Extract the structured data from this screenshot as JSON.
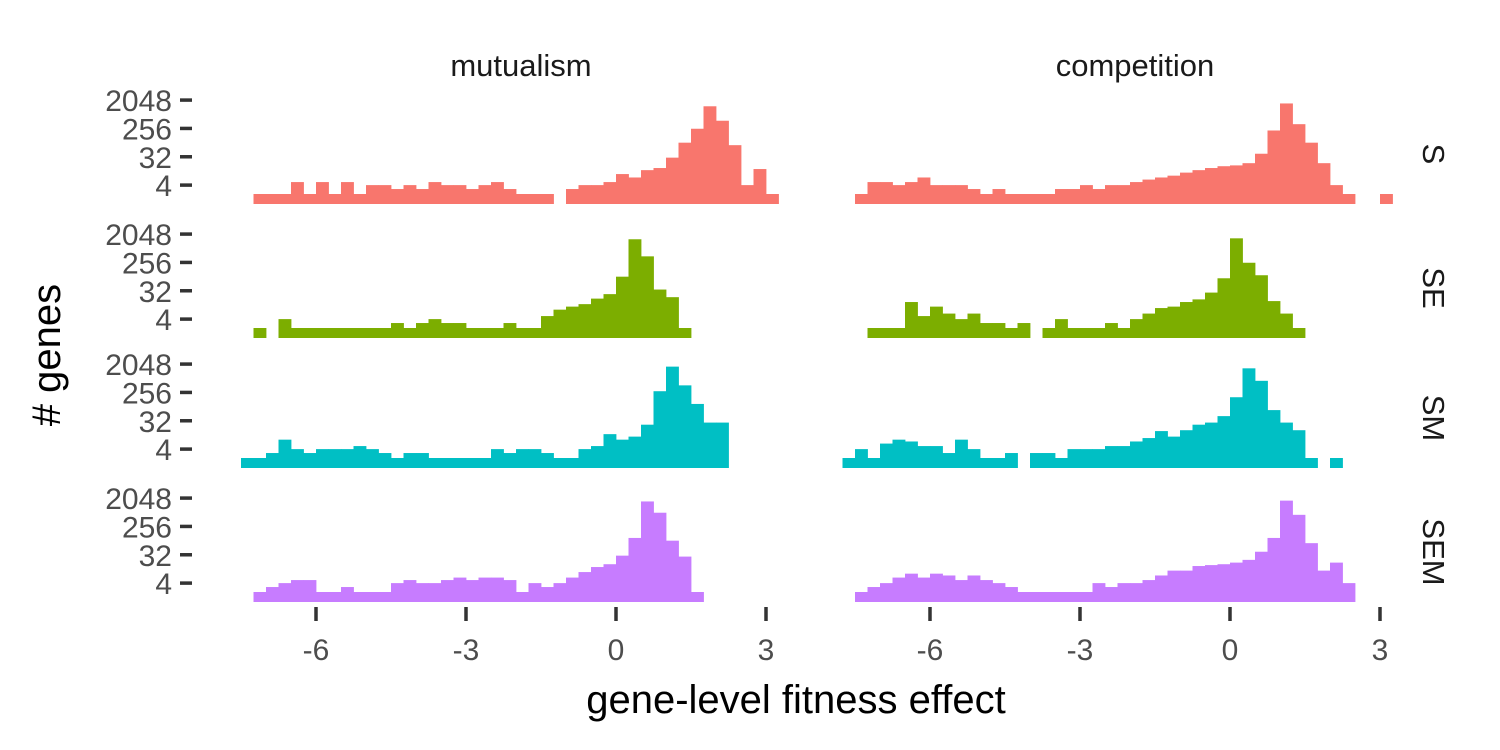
{
  "chart_data": {
    "type": "bar",
    "xlabel": "gene-level fitness effect",
    "ylabel": "# genes",
    "x_ticks": [
      -6,
      -3,
      0,
      3
    ],
    "xlim": [
      -7.6,
      3.0
    ],
    "y_scale": "log2",
    "y_ticks": [
      4,
      32,
      256,
      2048
    ],
    "y_tick_labels": [
      "4",
      "32",
      "256",
      "2048"
    ],
    "bin_width": 0.25,
    "grid": false,
    "columns": [
      "mutualism",
      "competition"
    ],
    "rows": [
      "S",
      "SE",
      "SM",
      "SEM"
    ],
    "colors": {
      "S": "#F8766D",
      "SE": "#7CAE00",
      "SM": "#00BFC4",
      "SEM": "#C77CFF"
    },
    "panels": [
      {
        "row": "S",
        "column": "mutualism",
        "bin_start": -7.25,
        "counts": [
          1,
          2,
          2,
          5,
          2,
          5,
          1,
          5,
          1,
          4,
          4,
          3,
          4,
          3,
          5,
          4,
          4,
          3,
          4,
          5,
          3,
          2,
          2,
          1,
          null,
          3,
          4,
          4,
          5,
          9,
          7,
          12,
          14,
          30,
          90,
          250,
          1300,
          450,
          75,
          4,
          13,
          2
        ]
      },
      {
        "row": "S",
        "column": "competition",
        "bin_start": -7.5,
        "counts": [
          1,
          5,
          5,
          4,
          5,
          7,
          4,
          4,
          4,
          3,
          2,
          3,
          1,
          1,
          2,
          2,
          3,
          3,
          4,
          3,
          4,
          4,
          5,
          6,
          7,
          8,
          10,
          12,
          14,
          16,
          17,
          20,
          40,
          220,
          1600,
          350,
          90,
          20,
          4,
          2,
          null,
          null,
          1
        ]
      },
      {
        "row": "SE",
        "column": "mutualism",
        "bin_start": -7.25,
        "counts": [
          2,
          null,
          4,
          1,
          2,
          1,
          1,
          1,
          2,
          2,
          2,
          3,
          2,
          3,
          4,
          3,
          3,
          2,
          2,
          2,
          3,
          2,
          1,
          5,
          8,
          10,
          12,
          18,
          25,
          90,
          1400,
          400,
          35,
          20,
          2
        ]
      },
      {
        "row": "SE",
        "column": "competition",
        "bin_start": -7.25,
        "counts": [
          2,
          2,
          2,
          14,
          5,
          10,
          6,
          4,
          6,
          3,
          3,
          1,
          3,
          null,
          1,
          4,
          1,
          2,
          2,
          3,
          1,
          4,
          6,
          9,
          10,
          14,
          17,
          28,
          80,
          1500,
          250,
          100,
          15,
          6,
          2
        ]
      },
      {
        "row": "SM",
        "column": "mutualism",
        "bin_start": -7.5,
        "counts": [
          1,
          2,
          3,
          8,
          4,
          3,
          4,
          4,
          4,
          5,
          4,
          3,
          2,
          3,
          3,
          2,
          2,
          2,
          2,
          2,
          4,
          3,
          4,
          4,
          3,
          2,
          2,
          4,
          5,
          12,
          8,
          10,
          24,
          280,
          1700,
          430,
          110,
          28,
          28
        ]
      },
      {
        "row": "SM",
        "column": "competition",
        "bin_start": -7.75,
        "counts": [
          1,
          4,
          2,
          6,
          8,
          7,
          5,
          5,
          3,
          8,
          4,
          2,
          2,
          3,
          null,
          3,
          3,
          2,
          4,
          4,
          4,
          5,
          5,
          7,
          9,
          15,
          10,
          16,
          24,
          28,
          45,
          180,
          1500,
          600,
          70,
          28,
          16,
          2,
          null,
          1
        ]
      },
      {
        "row": "SEM",
        "column": "mutualism",
        "bin_start": -7.25,
        "counts": [
          1,
          3,
          4,
          5,
          5,
          2,
          2,
          3,
          2,
          2,
          2,
          4,
          5,
          4,
          4,
          5,
          6,
          5,
          6,
          6,
          5,
          2,
          4,
          3,
          4,
          6,
          9,
          13,
          16,
          30,
          110,
          1600,
          700,
          90,
          28,
          2
        ]
      },
      {
        "row": "SEM",
        "column": "competition",
        "bin_start": -7.5,
        "counts": [
          2,
          3,
          4,
          6,
          8,
          6,
          8,
          7,
          5,
          7,
          5,
          4,
          3,
          2,
          1,
          2,
          2,
          2,
          2,
          4,
          3,
          4,
          4,
          5,
          7,
          10,
          10,
          14,
          15,
          16,
          18,
          22,
          40,
          110,
          1700,
          600,
          75,
          10,
          18,
          4
        ]
      }
    ]
  }
}
